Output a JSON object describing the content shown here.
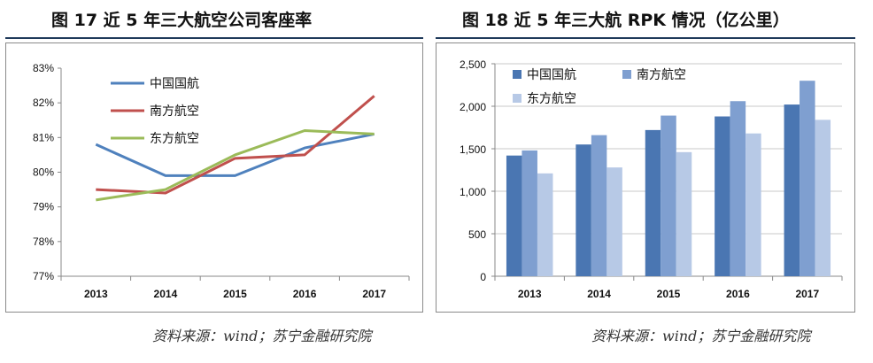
{
  "left_chart": {
    "title": "图 17 近 5 年三大航空公司客座率",
    "source": "资料来源：wind；苏宁金融研究院"
  },
  "right_chart": {
    "title": "图 18 近 5 年三大航 RPK 情况（亿公里）",
    "source": "资料来源：wind；苏宁金融研究院"
  },
  "colors": {
    "series_line": [
      "#4f81bd",
      "#c0504d",
      "#9bbb59"
    ],
    "series_bar": [
      "#4a76b2",
      "#7f9fd0",
      "#b7c9e6"
    ]
  },
  "chart_data": [
    {
      "type": "line",
      "title": "图 17 近 5 年三大航空公司客座率",
      "categories": [
        "2013",
        "2014",
        "2015",
        "2016",
        "2017"
      ],
      "y_ticks": [
        "77%",
        "78%",
        "79%",
        "80%",
        "81%",
        "82%",
        "83%"
      ],
      "ylim": [
        77,
        83
      ],
      "grid": false,
      "legend_position": "top-left-inside",
      "series": [
        {
          "name": "中国国航",
          "values": [
            80.8,
            79.9,
            79.9,
            80.7,
            81.1
          ]
        },
        {
          "name": "南方航空",
          "values": [
            79.5,
            79.4,
            80.4,
            80.5,
            82.2
          ]
        },
        {
          "name": "东方航空",
          "values": [
            79.2,
            79.5,
            80.5,
            81.2,
            81.1
          ]
        }
      ]
    },
    {
      "type": "bar",
      "title": "图 18 近 5 年三大航 RPK 情况（亿公里）",
      "categories": [
        "2013",
        "2014",
        "2015",
        "2016",
        "2017"
      ],
      "y_ticks": [
        "0",
        "500",
        "1,000",
        "1,500",
        "2,000",
        "2,500"
      ],
      "ylim": [
        0,
        2500
      ],
      "grid": true,
      "legend_position": "top-left-inside",
      "series": [
        {
          "name": "中国国航",
          "values": [
            1420,
            1550,
            1720,
            1880,
            2020
          ]
        },
        {
          "name": "南方航空",
          "values": [
            1480,
            1660,
            1890,
            2060,
            2300
          ]
        },
        {
          "name": "东方航空",
          "values": [
            1210,
            1280,
            1460,
            1680,
            1840
          ]
        }
      ]
    }
  ]
}
